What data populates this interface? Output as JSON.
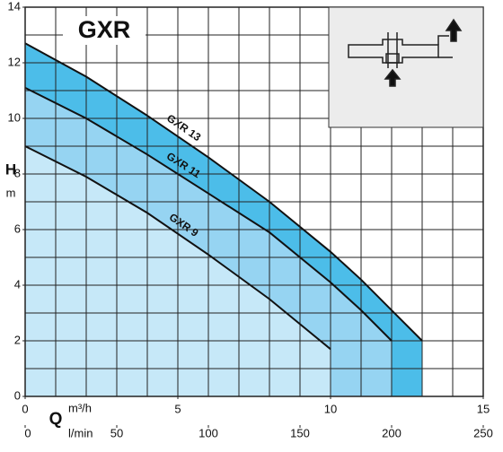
{
  "chart_data": {
    "type": "line",
    "title": "GXR",
    "y_label": "H",
    "y_unit": "m",
    "x_label": "Q",
    "x_unit": "m³/h",
    "x2_unit": "l/min",
    "xlim": [
      0,
      15
    ],
    "xticks": [
      0,
      5,
      10,
      15
    ],
    "x2lim": [
      0,
      250
    ],
    "x2ticks": [
      0,
      50,
      100,
      150,
      200,
      250
    ],
    "ylim": [
      0,
      14
    ],
    "yticks": [
      0,
      2,
      4,
      6,
      8,
      10,
      12,
      14
    ],
    "grid": true,
    "minor_grid_step": 1,
    "series": [
      {
        "name": "GXR 13",
        "color": "#4cbde9",
        "x": [
          0,
          2,
          4,
          6,
          8,
          10,
          11,
          12,
          13
        ],
        "values": [
          12.7,
          11.5,
          10.1,
          8.6,
          7.0,
          5.2,
          4.2,
          3.1,
          2.0
        ]
      },
      {
        "name": "GXR 11",
        "color": "#96d4f2",
        "x": [
          0,
          2,
          4,
          6,
          8,
          10,
          11,
          12
        ],
        "values": [
          11.1,
          10.0,
          8.7,
          7.3,
          5.9,
          4.1,
          3.1,
          2.0
        ]
      },
      {
        "name": "GXR 9",
        "color": "#c6e8f8",
        "x": [
          0,
          2,
          4,
          6,
          8,
          10
        ],
        "values": [
          9.0,
          7.9,
          6.6,
          5.1,
          3.5,
          1.7
        ]
      }
    ]
  }
}
